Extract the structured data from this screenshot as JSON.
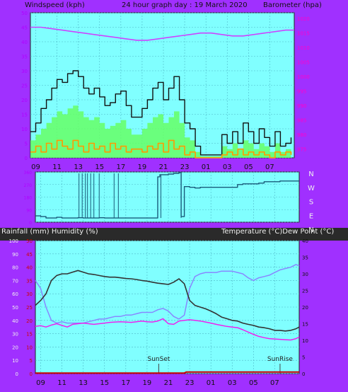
{
  "colors": {
    "page_bg": "#a030ff",
    "dark_band": "#2a2a2a",
    "plot_bg": "#80ffff",
    "grid": "#4fb8c8",
    "frame": "#222222",
    "wind_gust": "#111111",
    "wind_avg": "#66ff66",
    "wind_min": "#ff9900",
    "barometer": "#cc44ff",
    "direction": "#1a5a7a",
    "temperature": "#333333",
    "humidity": "#8888ff",
    "dew_point": "#ee22ee",
    "rain": "#cc0000",
    "left_tick_text": "#b000ff",
    "right_tick_text": "#ff00cc",
    "temp_tick_text": "#cc0000",
    "event_text": "#222222",
    "event_line": "#444444"
  },
  "chart_data": [
    {
      "type": "line",
      "title": "24 hour graph day : 19 March 2020",
      "ylabel": "Windspeed (kph)",
      "y2label": "Barometer (hpa)",
      "x_labels": [
        "11",
        "13",
        "15",
        "17",
        "19",
        "21",
        "23",
        "01",
        "03",
        "05",
        "07",
        "09"
      ],
      "x_hours_range": [
        8.5,
        33.3
      ],
      "ylim": [
        0,
        50
      ],
      "y_ticks": [
        0,
        5,
        10,
        15,
        20,
        25,
        30,
        35,
        40,
        45,
        50
      ],
      "y2lim": [
        972,
        1022
      ],
      "y2_ticks": [
        975,
        980,
        985,
        990,
        995,
        1000,
        1005,
        1010,
        1015,
        1020
      ],
      "grid": true,
      "series": [
        {
          "kind": "gust",
          "x": [
            8.5,
            9.0,
            9.5,
            10.0,
            10.5,
            11.0,
            11.5,
            12.0,
            12.5,
            13.0,
            13.5,
            14.0,
            14.5,
            15.0,
            15.5,
            16.0,
            16.5,
            17.0,
            17.5,
            18.0,
            18.5,
            19.0,
            19.5,
            20.0,
            20.5,
            21.0,
            21.5,
            22.0,
            22.5,
            23.0,
            23.5,
            24.0,
            24.5,
            25.0,
            25.5,
            26.0,
            26.5,
            27.0,
            27.5,
            28.0,
            28.5,
            29.0,
            29.5,
            30.0,
            30.5,
            31.0,
            31.5,
            32.0,
            32.5,
            33.0
          ],
          "values": [
            9,
            12,
            17,
            20,
            24,
            27,
            26,
            29,
            30,
            28,
            24,
            22,
            24,
            21,
            18,
            19,
            22,
            23,
            18,
            14,
            14,
            17,
            20,
            24,
            26,
            20,
            24,
            28,
            20,
            12,
            10,
            4,
            1,
            1,
            1,
            1,
            8,
            5,
            9,
            5,
            12,
            9,
            5,
            10,
            7,
            4,
            9,
            4,
            5,
            7
          ]
        },
        {
          "kind": "average",
          "x": [
            8.5,
            9.0,
            9.5,
            10.0,
            10.5,
            11.0,
            11.5,
            12.0,
            12.5,
            13.0,
            13.5,
            14.0,
            14.5,
            15.0,
            15.5,
            16.0,
            16.5,
            17.0,
            17.5,
            18.0,
            18.5,
            19.0,
            19.5,
            20.0,
            20.5,
            21.0,
            21.5,
            22.0,
            22.5,
            23.0,
            23.5,
            24.0,
            24.5,
            25.0,
            25.5,
            26.0,
            26.5,
            27.0,
            27.5,
            28.0,
            28.5,
            29.0,
            29.5,
            30.0,
            30.5,
            31.0,
            31.5,
            32.0,
            32.5,
            33.0
          ],
          "values": [
            6,
            8,
            10,
            12,
            14,
            16,
            15,
            17,
            18,
            16,
            14,
            13,
            14,
            12,
            10,
            11,
            12,
            13,
            10,
            8,
            8,
            10,
            12,
            14,
            15,
            12,
            14,
            16,
            12,
            7,
            6,
            2,
            0.5,
            0.5,
            0.5,
            0.5,
            4,
            3,
            5,
            3,
            6,
            5,
            3,
            5,
            4,
            2,
            5,
            2,
            3,
            4
          ]
        },
        {
          "kind": "minimum",
          "x": [
            8.5,
            9.0,
            9.5,
            10.0,
            10.5,
            11.0,
            11.5,
            12.0,
            12.5,
            13.0,
            13.5,
            14.0,
            14.5,
            15.0,
            15.5,
            16.0,
            16.5,
            17.0,
            17.5,
            18.0,
            18.5,
            19.0,
            19.5,
            20.0,
            20.5,
            21.0,
            21.5,
            22.0,
            22.5,
            23.0,
            23.5,
            24.0,
            24.5,
            25.0,
            25.5,
            26.0,
            26.5,
            27.0,
            27.5,
            28.0,
            28.5,
            29.0,
            29.5,
            30.0,
            30.5,
            31.0,
            31.5,
            32.0,
            32.5,
            33.0
          ],
          "values": [
            2,
            4,
            2,
            5,
            3,
            6,
            4,
            3,
            6,
            4,
            2,
            5,
            3,
            4,
            2,
            5,
            3,
            4,
            2,
            3,
            3,
            2,
            4,
            3,
            5,
            2,
            6,
            3,
            4,
            1,
            2,
            0,
            0,
            0,
            0,
            0,
            1,
            2,
            1,
            3,
            1,
            2,
            1,
            2,
            1,
            0,
            2,
            1,
            2,
            1
          ]
        },
        {
          "kind": "barometer",
          "axis": "y2",
          "x": [
            8.5,
            9.5,
            10.5,
            11.5,
            12.5,
            13.5,
            14.5,
            15.5,
            16.5,
            17.5,
            18.5,
            19.5,
            20.5,
            21.5,
            22.5,
            23.5,
            24.5,
            25.5,
            26.5,
            27.5,
            28.5,
            29.5,
            30.5,
            31.5,
            32.5,
            33.3
          ],
          "values": [
            1017,
            1017,
            1016.5,
            1016,
            1015.5,
            1015,
            1014.5,
            1014,
            1013.5,
            1013,
            1012.5,
            1012.5,
            1013,
            1013.5,
            1014,
            1014.5,
            1015,
            1015,
            1014.5,
            1014,
            1014,
            1014.5,
            1015,
            1015.5,
            1016,
            1016
          ]
        }
      ]
    },
    {
      "type": "line",
      "y2_labels": [
        "N",
        "W",
        "S",
        "E",
        "N"
      ],
      "y_ticks": [
        0,
        90,
        180,
        270,
        360
      ],
      "ylim": [
        0,
        360
      ],
      "x_hours_range": [
        8.5,
        33.3
      ],
      "series": [
        {
          "kind": "direction",
          "x": [
            8.5,
            9.0,
            9.5,
            10.0,
            10.5,
            11.0,
            11.5,
            12.0,
            12.5,
            13.0,
            13.5,
            14.0,
            14.5,
            15.0,
            15.5,
            16.0,
            16.5,
            17.0,
            17.5,
            18.0,
            18.5,
            19.0,
            19.5,
            20.0,
            20.2,
            20.5,
            21.0,
            21.5,
            22.0,
            22.2,
            22.5,
            23.0,
            23.5,
            24.0,
            24.5,
            25.0,
            25.5,
            26.0,
            26.5,
            27.0,
            27.5,
            28.0,
            28.5,
            29.0,
            29.5,
            30.0,
            30.5,
            31.0,
            31.5,
            32.0,
            32.5,
            33.0,
            33.3
          ],
          "values": [
            45,
            40,
            30,
            30,
            35,
            30,
            30,
            30,
            32,
            30,
            30,
            30,
            32,
            30,
            30,
            30,
            30,
            30,
            30,
            30,
            30,
            30,
            30,
            325,
            340,
            340,
            345,
            350,
            355,
            40,
            255,
            250,
            245,
            250,
            250,
            250,
            250,
            250,
            250,
            250,
            270,
            275,
            275,
            275,
            280,
            290,
            290,
            290,
            295,
            295,
            295,
            295,
            295
          ]
        }
      ]
    },
    {
      "type": "line",
      "ylabel": "Rainfall (mm)  Humidity (%)",
      "y2label": "Temperature (°C)Dew Point (°C)",
      "x_labels": [
        "11",
        "13",
        "15",
        "17",
        "19",
        "21",
        "23",
        "01",
        "03",
        "05",
        "07",
        "09"
      ],
      "x_hours_range": [
        8.5,
        33.3
      ],
      "ylim": [
        0,
        100
      ],
      "y_ticks": [
        0,
        10,
        20,
        30,
        40,
        50,
        60,
        70,
        80,
        90,
        100
      ],
      "rain_ylim": [
        0,
        50
      ],
      "rain_ticks": [
        0,
        5,
        10,
        15,
        20,
        25,
        30,
        35,
        40,
        45,
        50
      ],
      "y2lim": [
        0,
        40
      ],
      "y2_ticks": [
        0,
        5,
        10,
        15,
        20,
        25,
        30,
        35,
        40
      ],
      "grid": true,
      "annotations": [
        {
          "label": "SunSet",
          "hour": 20.1
        },
        {
          "label": "SunRise",
          "hour": 31.5
        }
      ],
      "series": [
        {
          "kind": "temperature",
          "axis": "y2",
          "x": [
            8.5,
            9.0,
            9.5,
            10.0,
            10.5,
            11.0,
            11.5,
            12.0,
            12.5,
            13.0,
            13.5,
            14.0,
            14.5,
            15.0,
            15.5,
            16.0,
            16.5,
            17.0,
            17.5,
            18.0,
            18.5,
            19.0,
            19.5,
            20.0,
            20.5,
            21.0,
            21.5,
            22.0,
            22.5,
            23.0,
            23.5,
            24.0,
            24.5,
            25.0,
            25.5,
            26.0,
            26.5,
            27.0,
            27.5,
            28.0,
            28.5,
            29.0,
            29.5,
            30.0,
            30.5,
            31.0,
            31.5,
            32.0,
            32.5,
            33.0,
            33.3
          ],
          "values": [
            20.5,
            22,
            24,
            28,
            29.5,
            30,
            30,
            30.5,
            31,
            30.5,
            30,
            29.8,
            29.5,
            29.2,
            29,
            29,
            28.8,
            28.6,
            28.5,
            28.3,
            28,
            27.8,
            27.5,
            27.2,
            27,
            26.8,
            27.5,
            28.5,
            27,
            22,
            20.5,
            20,
            19.5,
            18.8,
            18,
            17,
            16.5,
            16,
            15.8,
            15.2,
            14.8,
            14.5,
            14,
            13.8,
            13.5,
            13,
            13,
            12.8,
            13,
            13.5,
            14
          ]
        },
        {
          "kind": "humidity",
          "x": [
            8.5,
            9.0,
            9.5,
            10.0,
            10.5,
            11.0,
            11.5,
            12.0,
            12.5,
            13.0,
            13.5,
            14.0,
            14.5,
            15.0,
            15.5,
            16.0,
            16.5,
            17.0,
            17.5,
            18.0,
            18.5,
            19.0,
            19.5,
            20.0,
            20.5,
            21.0,
            21.5,
            22.0,
            22.5,
            23.0,
            23.5,
            24.0,
            24.5,
            25.0,
            25.5,
            26.0,
            26.5,
            27.0,
            27.5,
            28.0,
            28.5,
            29.0,
            29.5,
            30.0,
            30.5,
            31.0,
            31.5,
            32.0,
            32.5,
            33.0,
            33.3
          ],
          "values": [
            70,
            64,
            50,
            40,
            38,
            39,
            38,
            38,
            38,
            38,
            39,
            40,
            41,
            41,
            42,
            43,
            43,
            44,
            44,
            45,
            46,
            46,
            46,
            48,
            49,
            47,
            43,
            41,
            44,
            64,
            73,
            75,
            76,
            76,
            76,
            77,
            77,
            77,
            76,
            75,
            72,
            70,
            72,
            73,
            74,
            76,
            78,
            79,
            80,
            82,
            81
          ]
        },
        {
          "kind": "dew_point",
          "axis": "y2",
          "x": [
            8.5,
            9.0,
            9.5,
            10.0,
            10.5,
            11.0,
            11.5,
            12.0,
            12.5,
            13.0,
            13.5,
            14.0,
            14.5,
            15.0,
            15.5,
            16.0,
            16.5,
            17.0,
            17.5,
            18.0,
            18.5,
            19.0,
            19.5,
            20.0,
            20.5,
            21.0,
            21.5,
            22.0,
            22.5,
            23.0,
            23.5,
            24.0,
            24.5,
            25.0,
            25.5,
            26.0,
            26.5,
            27.0,
            27.5,
            28.0,
            28.5,
            29.0,
            29.5,
            30.0,
            30.5,
            31.0,
            31.5,
            32.0,
            32.5,
            33.0,
            33.3
          ],
          "values": [
            14.2,
            14.4,
            14,
            14.6,
            15,
            14.5,
            14,
            14.8,
            15,
            15.2,
            15,
            14.8,
            15,
            15.2,
            15.4,
            15.5,
            15.6,
            15.5,
            15.4,
            15.6,
            15.8,
            15.6,
            15.5,
            15.8,
            16.5,
            15,
            14.8,
            15.8,
            16,
            16.2,
            16,
            15.8,
            15.5,
            15.2,
            14.8,
            14.5,
            14.2,
            14,
            13.8,
            13.2,
            12.5,
            11.8,
            11.2,
            10.8,
            10.5,
            10.4,
            10.3,
            10.2,
            10.1,
            10.5,
            11
          ]
        },
        {
          "kind": "rain",
          "axis": "rain",
          "x": [
            8.5,
            22.5,
            22.7,
            33.3
          ],
          "values": [
            0.2,
            0.2,
            0.6,
            0.6
          ]
        }
      ]
    }
  ],
  "labels": {
    "title": "24 hour graph day : 19 March 2020",
    "windspeed": "Windspeed (kph)",
    "barometer": "Barometer (hpa)",
    "rain_humidity": "Rainfall (mm)  Humidity (%)",
    "temp_dew": "Temperature (°C)Dew Point (°C)"
  }
}
